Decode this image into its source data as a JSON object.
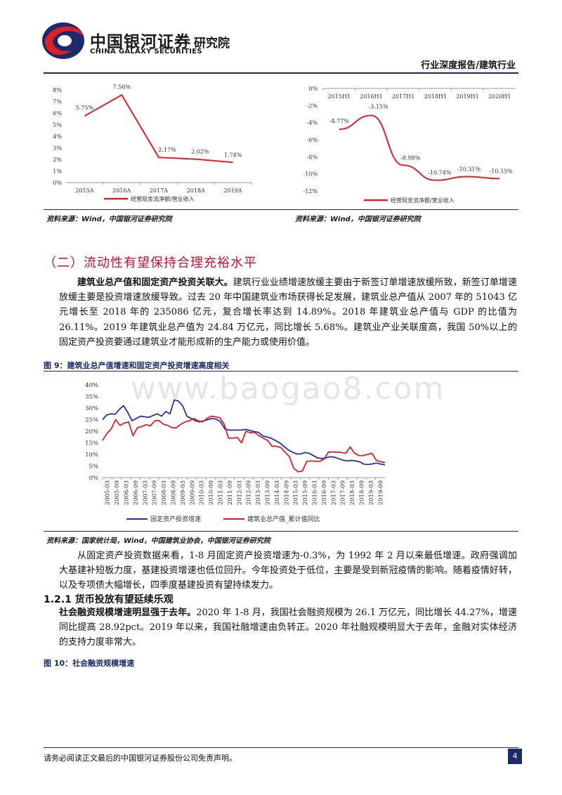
{
  "header": {
    "logo_cn": "中国银河证券",
    "logo_en": "CHINA GALAXY SECURITIES",
    "institute": "研究院",
    "report_type": "行业深度报告/建筑行业",
    "colors": {
      "navy": "#1b2a6b",
      "brand_red": "#c8102e"
    }
  },
  "chart_data": [
    {
      "type": "line",
      "categories": [
        "2015A",
        "2016A",
        "2017A",
        "2018A",
        "2019A"
      ],
      "series": [
        {
          "name": "经营现金流净额/营业收入",
          "values": [
            5.75,
            7.56,
            2.17,
            2.02,
            1.74
          ],
          "labels": [
            "5.75%",
            "7.56%",
            "2.17%",
            "2.02%",
            "1.74%"
          ],
          "color": "#e01f26"
        }
      ],
      "yticks": [
        "8%",
        "7%",
        "6%",
        "5%",
        "4%",
        "3%",
        "2%",
        "1%",
        "0%"
      ],
      "ylim": [
        0,
        8
      ],
      "legend": "bottom"
    },
    {
      "type": "line",
      "categories": [
        "2015H1",
        "2016H1",
        "2017H1",
        "2018H1",
        "2019H1",
        "2020H1"
      ],
      "series": [
        {
          "name": "经营现金流净额/营业收入",
          "values": [
            -4.77,
            -3.15,
            -8.98,
            -10.74,
            -10.31,
            -10.55
          ],
          "labels": [
            "-4.77%",
            "-3.15%",
            "-8.98%",
            "-10.74%",
            "-10.31%",
            "-10.55%"
          ],
          "color": "#e01f26"
        }
      ],
      "yticks": [
        "0%",
        "-2%",
        "-4%",
        "-6%",
        "-8%",
        "-10%",
        "-12%"
      ],
      "ylim": [
        -12,
        0
      ],
      "legend": "bottom"
    },
    {
      "type": "line",
      "xticks": [
        "2005-03",
        "2005-09",
        "2006-03",
        "2006-09",
        "2007-03",
        "2007-09",
        "2008-03",
        "2008-09",
        "2009-03",
        "2009-09",
        "2010-03",
        "2010-09",
        "2011-03",
        "2011-09",
        "2012-03",
        "2012-09",
        "2013-03",
        "2013-09",
        "2014-03",
        "2014-09",
        "2015-03",
        "2015-09",
        "2016-03",
        "2016-09",
        "2017-03",
        "2017-09",
        "2018-03",
        "2018-09",
        "2019-03",
        "2019-09"
      ],
      "yticks": [
        "40%",
        "35%",
        "30%",
        "25%",
        "20%",
        "15%",
        "10%",
        "5%",
        "0%"
      ],
      "ylim": [
        0,
        40
      ],
      "series": [
        {
          "name": "固定资产投资增速",
          "color": "#2233aa",
          "values": [
            25,
            27,
            27.5,
            27.3,
            29.5,
            31,
            28,
            24.5,
            25.5,
            26.5,
            26.2,
            26,
            26.8,
            27.5,
            26.5,
            28.5,
            27.5,
            33.5,
            33,
            31,
            26.5,
            25.5,
            24.5,
            24,
            24.5,
            25,
            25.5,
            25.2,
            24,
            21,
            20.5,
            20.5,
            20.5,
            20.5,
            20.8,
            20.3,
            19.8,
            19.5,
            18,
            17.5,
            17,
            16,
            15,
            13.5,
            12,
            11,
            10.2,
            10.2,
            10.8,
            10.5,
            9.5,
            8.5,
            8.2,
            8.5,
            9,
            8.8,
            8.2,
            7.5,
            7.2,
            7.4,
            7.2,
            6.8,
            5.8,
            5.6,
            5.9,
            6.3,
            5.8,
            5.5
          ]
        },
        {
          "name": "建筑业总产值_累计值同比",
          "color": "#e01f26",
          "values": [
            16,
            19,
            21,
            25,
            22.5,
            23.5,
            24,
            18,
            21.5,
            22,
            22.8,
            22.3,
            24.5,
            24.6,
            23,
            22.5,
            21.5,
            21.5,
            23,
            24,
            24.5,
            25.5,
            24.5,
            24,
            25.5,
            26.5,
            26.2,
            25.8,
            23,
            17,
            17,
            17.3,
            15,
            20,
            19.3,
            19.5,
            18,
            17,
            16,
            13.5,
            13.5,
            13,
            11,
            9,
            4,
            2.5,
            2.8,
            7,
            7.2,
            7,
            7,
            8,
            11,
            11,
            11,
            10.8,
            10.5,
            13.2,
            10.5,
            9.5,
            9.5,
            10,
            10.5,
            7.5,
            6.8,
            6.5
          ]
        }
      ],
      "legend": "bottom"
    }
  ],
  "chart1": {
    "legend": "经营现金流净额/营业收入"
  },
  "chart2": {
    "legend": "经营现金流净额/营业收入"
  },
  "chart3": {
    "legend_a": "固定资产投资增速",
    "legend_b": "建筑业总产值_累计值同比"
  },
  "sources": {
    "left": "资料来源：Wind，中国银河证券研究院",
    "right": "资料来源：Wind，中国银河证券研究院",
    "fig9": "资料来源：国家统计局，Wind，中国建筑业协会，中国银河证券研究院"
  },
  "section_title": "（二）流动性有望保持合理充裕水平",
  "para1": {
    "bold": "建筑业总产值和固定资产投资关联大。",
    "rest": "建筑行业业绩增速放缓主要由于新签订单增速放缓所致，新签订单增速放缓主要是投资增速放缓导致。过去 20 年中国建筑业市场获得长足发展，建筑业总产值从 2007 年的 51043 亿元增长至 2018 年的 235086 亿元，复合增长率达到 14.89%。2018 年建筑业总产值与 GDP 的比值为 26.11%。2019 年建筑业总产值为 24.84 万亿元，同比增长 5.68%。建筑业产业关联度高，我国 50%以上的固定资产投资要通过建筑业才能形成新的生产能力或使用价值。"
  },
  "fig9_title": "图 9：建筑业总产值增速和固定资产投资增速高度相关",
  "watermark": "www.baogao8.com",
  "para2": "从固定资产投资数据来看，1-8 月固定资产投资增速为-0.3%，为 1992 年 2 月以来最低增速。政府强调加大基建补短板力度，基建投资增速也低位回升。今年投资处于低位，主要是受到新冠疫情的影响。随着疫情好转，以及专项债大幅增长，四季度基建投资有望持续发力。",
  "subsection": "1.2.1 货币投放有望延续乐观",
  "para3": {
    "bold": "社会融资规模增速明显强于去年。",
    "rest": "2020 年 1-8 月，我国社会融资规模为 26.1 万亿元，同比增长 44.27%，增速同比提高 28.92pct。2019 年以来，我国社融增速由负转正。2020 年社融规模明显大于去年，金融对实体经济的支持力度非常大。"
  },
  "fig10_title": "图 10：社会融资规模增速",
  "footer": {
    "disclaimer": "请务必阅读正文最后的中国银河证券股份公司免责声明。",
    "page": "4"
  }
}
